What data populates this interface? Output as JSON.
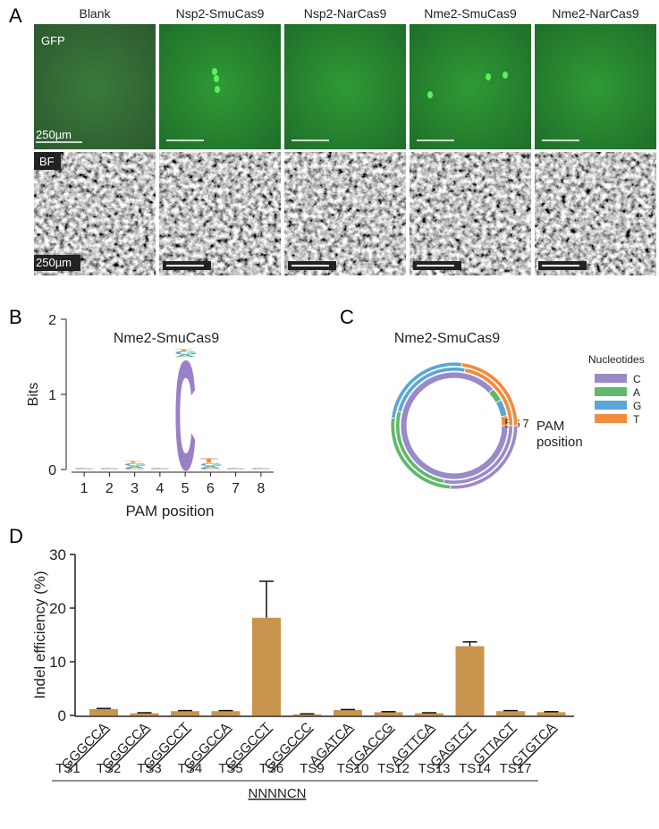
{
  "panel_labels": {
    "a": "A",
    "b": "B",
    "c": "C",
    "d": "D"
  },
  "panel_a": {
    "columns": [
      "Blank",
      "Nsp2-SmuCas9",
      "Nsp2-NarCas9",
      "Nme2-SmuCas9",
      "Nme2-NarCas9"
    ],
    "row_labels": [
      "GFP",
      "BF"
    ],
    "scale_bar_label": "250µm"
  },
  "chart_data": [
    {
      "type": "logo",
      "title": "Nme2-SmuCas9",
      "y_label": "Bits",
      "x_label": "PAM position",
      "x": [
        1,
        2,
        3,
        4,
        5,
        6,
        7,
        8
      ],
      "xlim": [
        0.5,
        8.5
      ],
      "ylim": [
        0,
        2
      ],
      "yticks": [
        0,
        1,
        2
      ],
      "series": [
        {
          "name": "C",
          "color": "#9b7fc7",
          "values": [
            0.005,
            0.005,
            0.02,
            0.005,
            1.5,
            0.02,
            0.005,
            0.005
          ]
        },
        {
          "name": "A",
          "color": "#5cb86a",
          "values": [
            0.005,
            0.005,
            0.03,
            0.005,
            0.03,
            0.03,
            0.005,
            0.005
          ]
        },
        {
          "name": "G",
          "color": "#5aa8d8",
          "values": [
            0.005,
            0.005,
            0.04,
            0.005,
            0.05,
            0.04,
            0.005,
            0.005
          ]
        },
        {
          "name": "T",
          "color": "#f28a3c",
          "values": [
            0.005,
            0.005,
            0.02,
            0.005,
            0.02,
            0.06,
            0.005,
            0.005
          ]
        }
      ]
    },
    {
      "type": "sunburst",
      "title": "Nme2-SmuCas9",
      "legend_title": "Nucleotides",
      "axis_label": "PAM position",
      "categories": [
        "5",
        "6",
        "7"
      ],
      "series": [
        {
          "name": "C",
          "color": "#9b8ac8",
          "values": [
            88,
            28,
            26
          ]
        },
        {
          "name": "A",
          "color": "#5fb96a",
          "values": [
            4,
            26,
            26
          ]
        },
        {
          "name": "G",
          "color": "#5aa7d6",
          "values": [
            5,
            24,
            25
          ]
        },
        {
          "name": "T",
          "color": "#f28b3c",
          "values": [
            3,
            22,
            23
          ]
        }
      ]
    },
    {
      "type": "bar",
      "y_label": "Indel efficiency (%)",
      "categories": [
        "TS1",
        "TS2",
        "TS3",
        "TS4",
        "TS5",
        "TS6",
        "TS9",
        "TS10",
        "TS12",
        "TS13",
        "TS14",
        "TS17"
      ],
      "sequences": [
        "GGGCCA",
        "GGGCCA",
        "GGGCCT",
        "GGGCCA",
        "GGGCCT",
        "GGGCCC",
        "AGATCA",
        "TGACCG",
        "AGTTCA",
        "GAGTCT",
        "GTTACT",
        "GTGTCA"
      ],
      "consensus": "NNNNCN",
      "values": [
        1.2,
        0.4,
        0.8,
        0.8,
        18.2,
        0.2,
        1.0,
        0.6,
        0.4,
        12.9,
        0.8,
        0.6
      ],
      "errors": [
        0.1,
        0.1,
        0.1,
        0.1,
        6.8,
        0.1,
        0.1,
        0.1,
        0.1,
        0.8,
        0.1,
        0.1
      ],
      "color": "#c8954f",
      "ylim": [
        0,
        30
      ],
      "yticks": [
        0,
        10,
        20,
        30
      ]
    }
  ]
}
